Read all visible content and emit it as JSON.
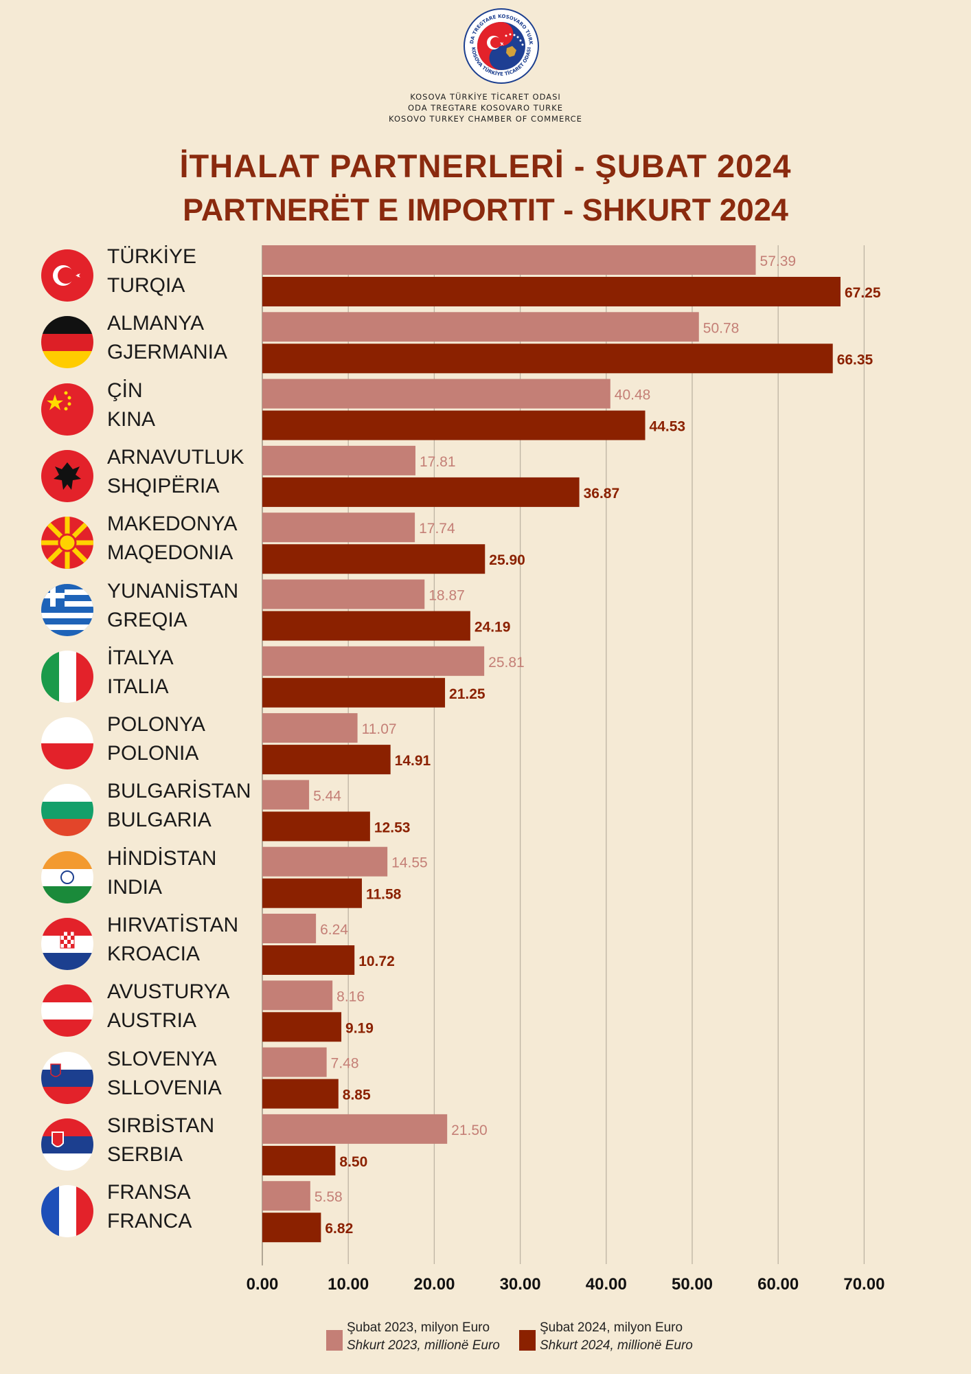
{
  "header": {
    "org_line1": "KOSOVA TÜRKİYE TİCARET ODASI",
    "org_line2": "ODA TREGTARE KOSOVARO TURKE",
    "org_line3": "KOSOVO TURKEY CHAMBER OF COMMERCE",
    "logo_ring_text_top": "ODA TREGTARE KOSOVARO TURKE",
    "logo_ring_text_bottom": "KOSOVA TÜRKİYE TİCARET ODASI",
    "title_line1": "İTHALAT PARTNERLERİ - ŞUBAT 2024",
    "title_line2": "PARTNERËT E IMPORTIT - SHKURT 2024"
  },
  "colors": {
    "background": "#f5ead5",
    "bar_2023": "#c47f76",
    "bar_2024": "#8b2100",
    "title": "#8a2a0e",
    "grid": "#bdb3a3"
  },
  "countries": [
    {
      "tr": "TÜRKİYE",
      "sq": "TURQIA",
      "flag": "turkey-flag-icon"
    },
    {
      "tr": "ALMANYA",
      "sq": "GJERMANIA",
      "flag": "germany-flag-icon"
    },
    {
      "tr": "ÇİN",
      "sq": "KINA",
      "flag": "china-flag-icon"
    },
    {
      "tr": "ARNAVUTLUK",
      "sq": "SHQIPËRIA",
      "flag": "albania-flag-icon"
    },
    {
      "tr": "MAKEDONYA",
      "sq": "MAQEDONIA",
      "flag": "north-macedonia-flag-icon"
    },
    {
      "tr": "YUNANİSTAN",
      "sq": "GREQIA",
      "flag": "greece-flag-icon"
    },
    {
      "tr": "İTALYA",
      "sq": "ITALIA",
      "flag": "italy-flag-icon"
    },
    {
      "tr": "POLONYA",
      "sq": "POLONIA",
      "flag": "poland-flag-icon"
    },
    {
      "tr": "BULGARİSTAN",
      "sq": "BULGARIA",
      "flag": "bulgaria-flag-icon"
    },
    {
      "tr": "HİNDİSTAN",
      "sq": "INDIA",
      "flag": "india-flag-icon"
    },
    {
      "tr": "HIRVATİSTAN",
      "sq": "KROACIA",
      "flag": "croatia-flag-icon"
    },
    {
      "tr": "AVUSTURYA",
      "sq": "AUSTRIA",
      "flag": "austria-flag-icon"
    },
    {
      "tr": "SLOVENYA",
      "sq": "SLLOVENIA",
      "flag": "slovenia-flag-icon"
    },
    {
      "tr": "SIRBİSTAN",
      "sq": "SERBIA",
      "flag": "serbia-flag-icon"
    },
    {
      "tr": "FRANSA",
      "sq": "FRANCA",
      "flag": "france-flag-icon"
    }
  ],
  "legend": {
    "s2023_line1": "Şubat 2023, milyon Euro",
    "s2023_line2": "Shkurt 2023, millionë Euro",
    "s2024_line1": "Şubat 2024, milyon Euro",
    "s2024_line2": "Shkurt 2024, millionë Euro"
  },
  "chart_data": {
    "type": "bar",
    "orientation": "horizontal",
    "categories": [
      "TÜRKİYE / TURQIA",
      "ALMANYA / GJERMANIA",
      "ÇİN / KINA",
      "ARNAVUTLUK / SHQIPËRIA",
      "MAKEDONYA / MAQEDONIA",
      "YUNANİSTAN / GREQIA",
      "İTALYA / ITALIA",
      "POLONYA / POLONIA",
      "BULGARİSTAN / BULGARIA",
      "HİNDİSTAN / INDIA",
      "HIRVATİSTAN / KROACIA",
      "AVUSTURYA / AUSTRIA",
      "SLOVENYA / SLLOVENIA",
      "SIRBİSTAN / SERBIA",
      "FRANSA / FRANCA"
    ],
    "series": [
      {
        "name": "Şubat 2023, milyon Euro / Shkurt 2023, millionë Euro",
        "values": [
          57.39,
          50.78,
          40.48,
          17.81,
          17.74,
          18.87,
          25.81,
          11.07,
          5.44,
          14.55,
          6.24,
          8.16,
          7.48,
          21.5,
          5.58
        ],
        "labels": [
          "57.39",
          "50.78",
          "40.48",
          "17.81",
          "17.74",
          "18.87",
          "25.81",
          "11.07",
          "5.44",
          "14.55",
          "6.24",
          "8.16",
          "7.48",
          "21.50",
          "5.58"
        ]
      },
      {
        "name": "Şubat 2024, milyon Euro / Shkurt 2024, millionë Euro",
        "values": [
          67.25,
          66.35,
          44.53,
          36.87,
          25.9,
          24.19,
          21.25,
          14.91,
          12.53,
          11.58,
          10.72,
          9.19,
          8.85,
          8.5,
          6.82
        ],
        "labels": [
          "67.25",
          "66.35",
          "44.53",
          "36.87",
          "25.90",
          "24.19",
          "21.25",
          "14.91",
          "12.53",
          "11.58",
          "10.72",
          "9.19",
          "8.85",
          "8.50",
          "6.82"
        ]
      }
    ],
    "xlim": [
      0,
      70
    ],
    "xticks": [
      "0.00",
      "10.00",
      "20.00",
      "30.00",
      "40.00",
      "50.00",
      "60.00",
      "70.00"
    ],
    "grid": true,
    "legend_position": "bottom"
  }
}
